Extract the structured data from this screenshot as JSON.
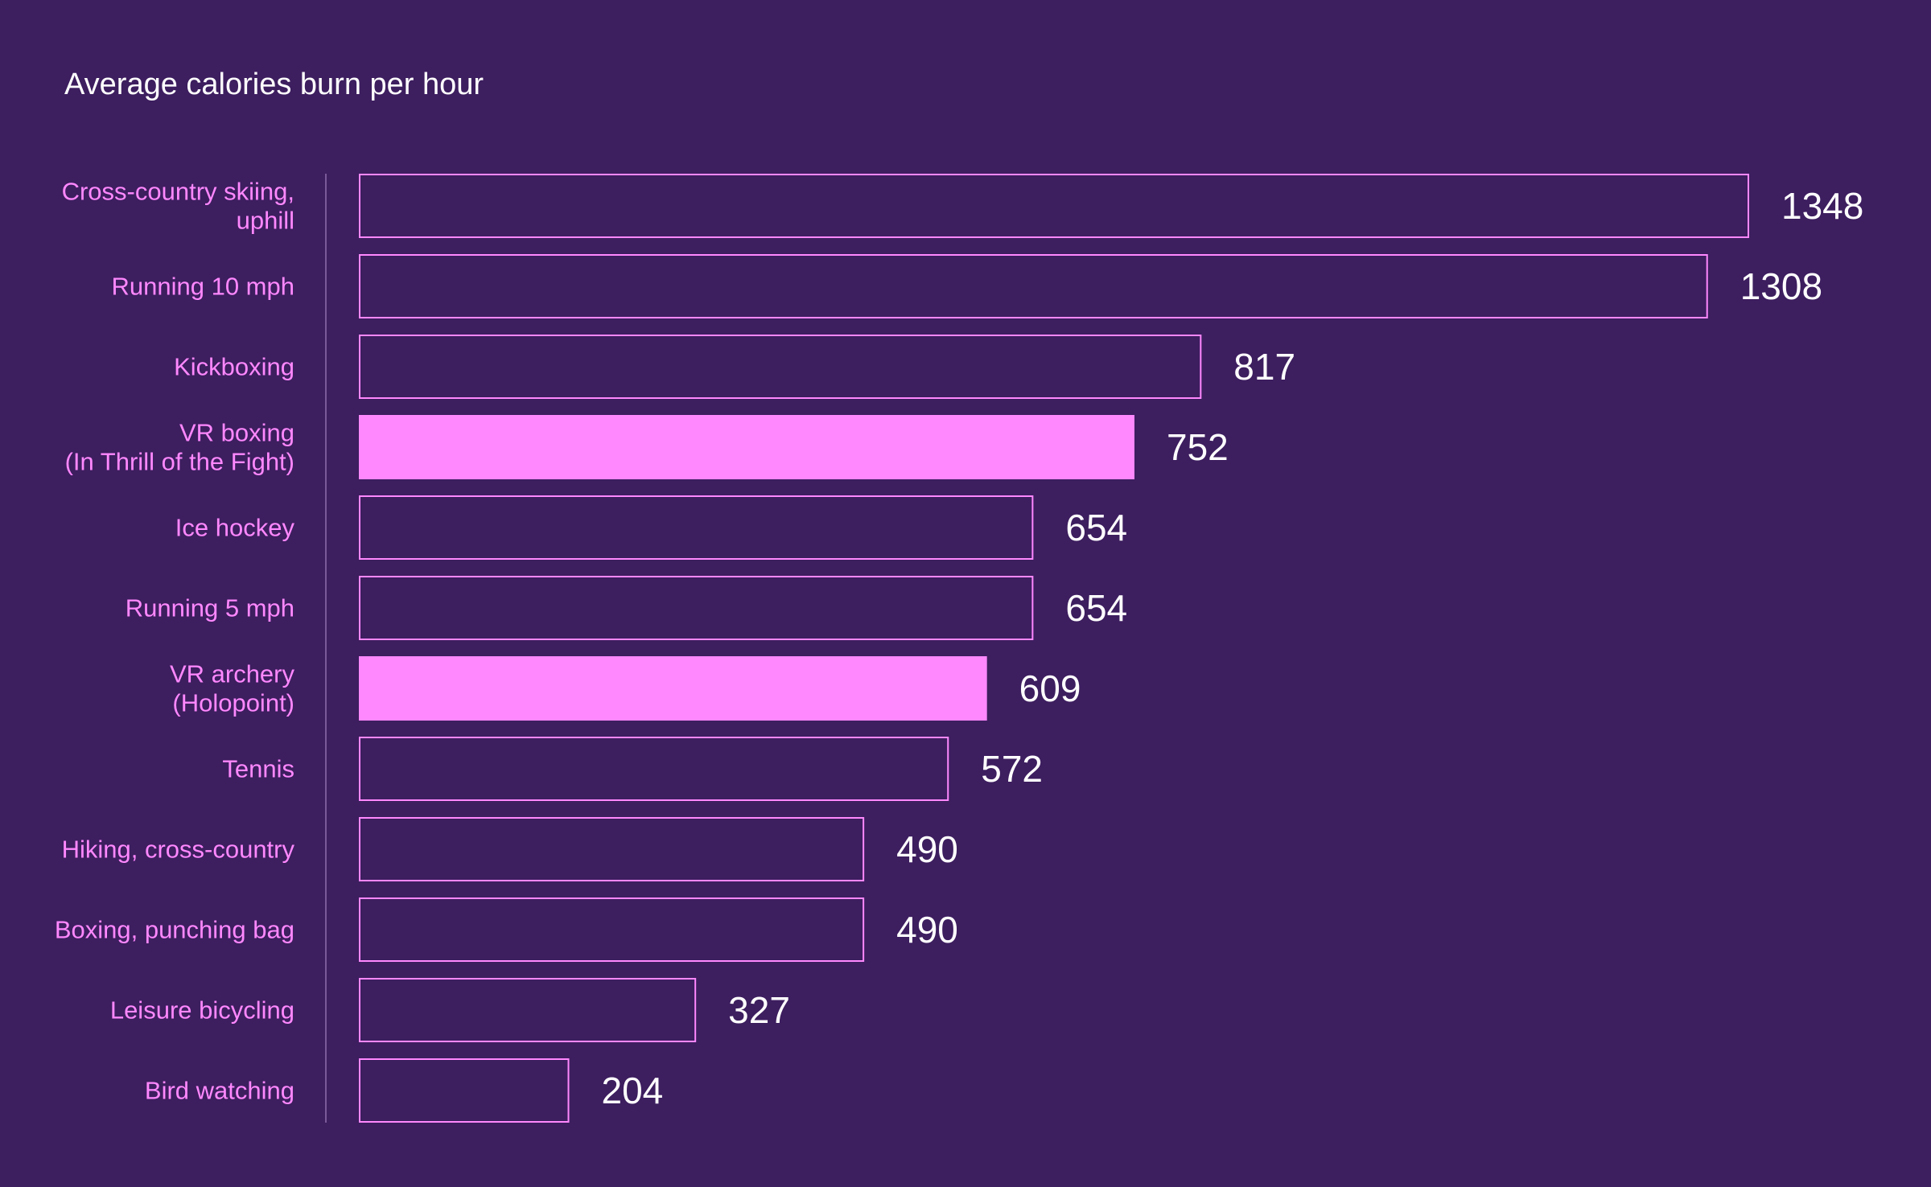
{
  "chart_data": {
    "type": "bar",
    "orientation": "horizontal",
    "title": "Average calories burn per hour",
    "xlabel": "",
    "ylabel": "",
    "xlim": [
      0,
      1348
    ],
    "grid": false,
    "legend": "none",
    "categories": [
      "Cross-country skiing,\nuphill",
      "Running 10 mph",
      "Kickboxing",
      "VR boxing\n(In Thrill of the Fight)",
      "Ice hockey",
      "Running 5 mph",
      "VR archery\n(Holopoint)",
      "Tennis",
      "Hiking, cross-country",
      "Boxing, punching bag",
      "Leisure bicycling",
      "Bird watching"
    ],
    "values": [
      1348,
      1308,
      817,
      752,
      654,
      654,
      609,
      572,
      490,
      490,
      327,
      204
    ],
    "highlighted": [
      false,
      false,
      false,
      true,
      false,
      false,
      true,
      false,
      false,
      false,
      false,
      false
    ]
  },
  "colors": {
    "background": "#3d1e5f",
    "accent": "#ff88ff",
    "bar_outline": "#ff88ff",
    "highlight_fill": "#ff88ff",
    "value_text": "#ffffff",
    "axis_line": "#7a5a98",
    "title_text": "#ffffff"
  }
}
